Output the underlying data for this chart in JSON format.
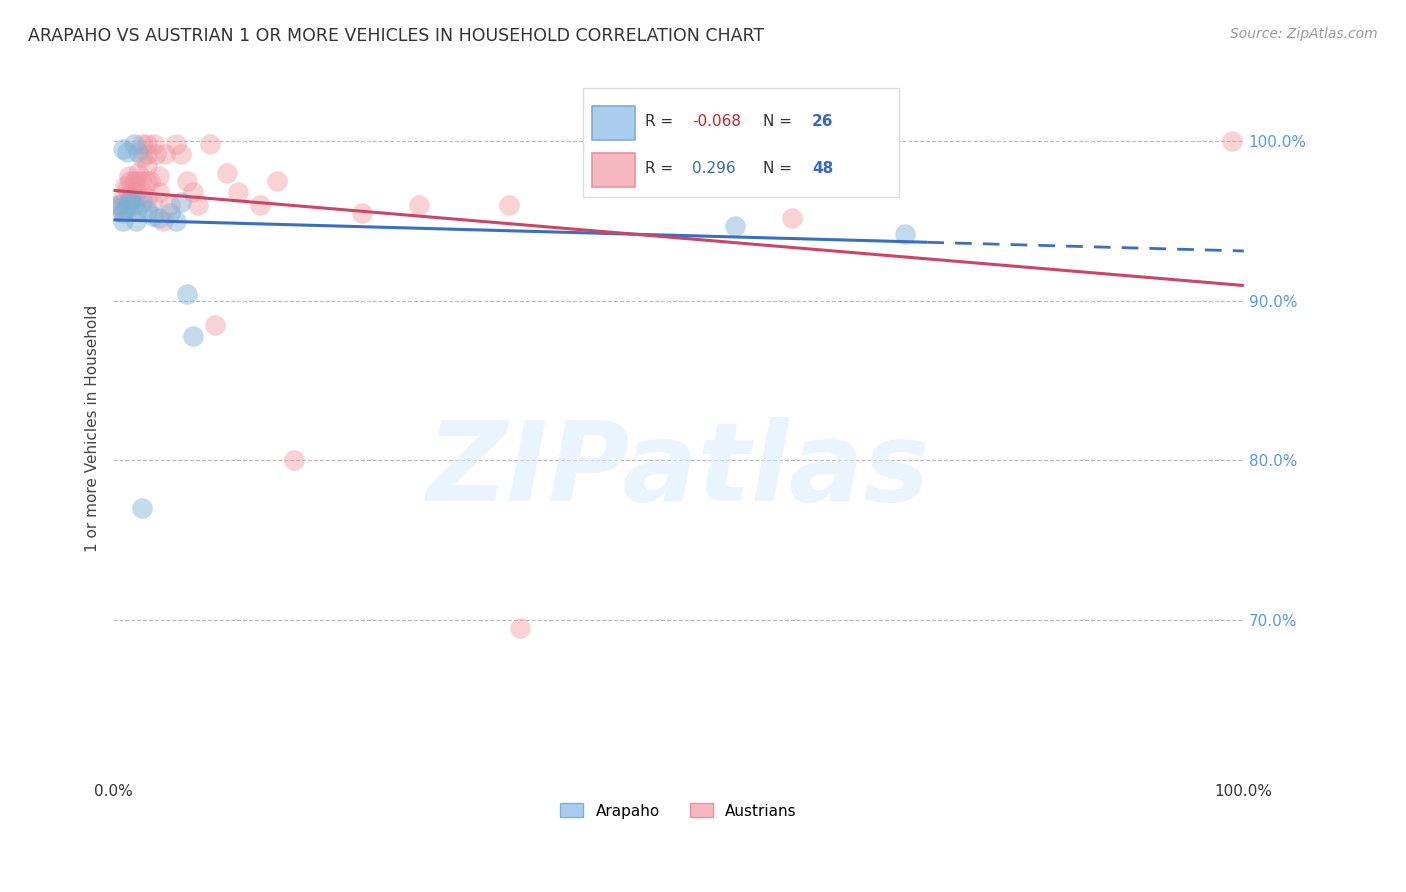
{
  "title": "ARAPAHO VS AUSTRIAN 1 OR MORE VEHICLES IN HOUSEHOLD CORRELATION CHART",
  "source": "Source: ZipAtlas.com",
  "ylabel": "1 or more Vehicles in Household",
  "ytick_labels": [
    "70.0%",
    "80.0%",
    "90.0%",
    "100.0%"
  ],
  "ytick_positions": [
    0.7,
    0.8,
    0.9,
    1.0
  ],
  "xlim": [
    0.0,
    1.0
  ],
  "ylim": [
    0.6,
    1.04
  ],
  "arapaho_color": "#7BAFD4",
  "austrians_color": "#F0909A",
  "arapaho_line_color": "#3A6FC0",
  "austrians_line_color": "#CC4466",
  "arapaho_R": -0.068,
  "arapaho_N": 26,
  "austrians_R": 0.296,
  "austrians_N": 48,
  "watermark_text": "ZIPatlas",
  "arapaho_x": [
    0.018,
    0.022,
    0.008,
    0.012,
    0.005,
    0.005,
    0.008,
    0.008,
    0.012,
    0.015,
    0.018,
    0.02,
    0.025,
    0.03,
    0.035,
    0.04,
    0.05,
    0.055,
    0.06,
    0.065,
    0.07,
    0.015,
    0.02,
    0.025,
    0.55,
    0.7
  ],
  "arapaho_y": [
    0.998,
    0.993,
    0.995,
    0.993,
    0.96,
    0.958,
    0.955,
    0.95,
    0.958,
    0.963,
    0.96,
    0.956,
    0.962,
    0.957,
    0.953,
    0.952,
    0.955,
    0.95,
    0.962,
    0.904,
    0.878,
    0.962,
    0.95,
    0.77,
    0.947,
    0.942
  ],
  "austrians_x": [
    0.005,
    0.008,
    0.01,
    0.01,
    0.012,
    0.014,
    0.015,
    0.016,
    0.018,
    0.018,
    0.02,
    0.02,
    0.022,
    0.024,
    0.025,
    0.025,
    0.03,
    0.03,
    0.03,
    0.03,
    0.03,
    0.032,
    0.034,
    0.036,
    0.038,
    0.04,
    0.04,
    0.044,
    0.046,
    0.05,
    0.055,
    0.06,
    0.065,
    0.07,
    0.075,
    0.085,
    0.09,
    0.1,
    0.11,
    0.13,
    0.145,
    0.16,
    0.22,
    0.27,
    0.35,
    0.36,
    0.6,
    0.99
  ],
  "austrians_y": [
    0.96,
    0.965,
    0.972,
    0.958,
    0.97,
    0.978,
    0.975,
    0.968,
    0.975,
    0.965,
    0.975,
    0.968,
    0.98,
    0.975,
    0.998,
    0.99,
    0.998,
    0.992,
    0.985,
    0.975,
    0.965,
    0.975,
    0.962,
    0.998,
    0.992,
    0.978,
    0.968,
    0.95,
    0.992,
    0.96,
    0.998,
    0.992,
    0.975,
    0.968,
    0.96,
    0.998,
    0.885,
    0.98,
    0.968,
    0.96,
    0.975,
    0.8,
    0.955,
    0.96,
    0.96,
    0.695,
    0.952,
    1.0
  ]
}
